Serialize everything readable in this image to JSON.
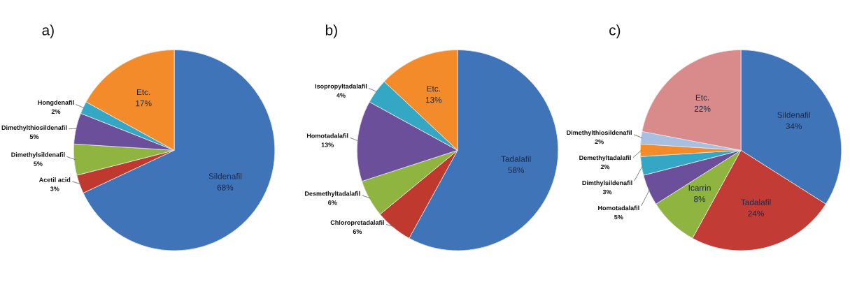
{
  "chart_data": [
    {
      "type": "pie",
      "title": "a)",
      "categories": [
        "Sildenafil",
        "Acetil acid",
        "Dimethylsildenafil",
        "Dimethylthiosildenafil",
        "Hongdenafil",
        "Etc."
      ],
      "values": [
        68,
        3,
        5,
        5,
        2,
        17
      ],
      "value_labels": [
        "68%",
        "3%",
        "5%",
        "5%",
        "2%",
        "17%"
      ],
      "colors": [
        "#3f74b9",
        "#c0392f",
        "#8fb440",
        "#6c4f9b",
        "#33a7c3",
        "#f38b2a"
      ]
    },
    {
      "type": "pie",
      "title": "b)",
      "categories": [
        "Tadalafil",
        "Chloropretadalafil",
        "Desmethyltadalafil",
        "Homotadalafil",
        "Isopropyltadalafil",
        "Etc."
      ],
      "values": [
        58,
        6,
        6,
        13,
        4,
        13
      ],
      "value_labels": [
        "58%",
        "6%",
        "6%",
        "13%",
        "4%",
        "13%"
      ],
      "colors": [
        "#3f74b9",
        "#c0392f",
        "#8fb440",
        "#6c4f9b",
        "#33a7c3",
        "#f38b2a"
      ]
    },
    {
      "type": "pie",
      "title": "c)",
      "categories": [
        "Sildenafil",
        "Tadalafil",
        "Icarrin",
        "Homotadalafil",
        "Dimthylsildenafil",
        "Demethyltadalafil",
        "Dimethylthiosildenafil",
        "Etc."
      ],
      "values": [
        34,
        24,
        8,
        5,
        3,
        2,
        2,
        22
      ],
      "value_labels": [
        "34%",
        "24%",
        "8%",
        "5%",
        "3%",
        "2%",
        "2%",
        "22%"
      ],
      "colors": [
        "#3f74b9",
        "#c23b34",
        "#8fb440",
        "#6c4f9b",
        "#33a7c3",
        "#f38b2a",
        "#a8bfe2",
        "#d88b8a"
      ]
    }
  ]
}
